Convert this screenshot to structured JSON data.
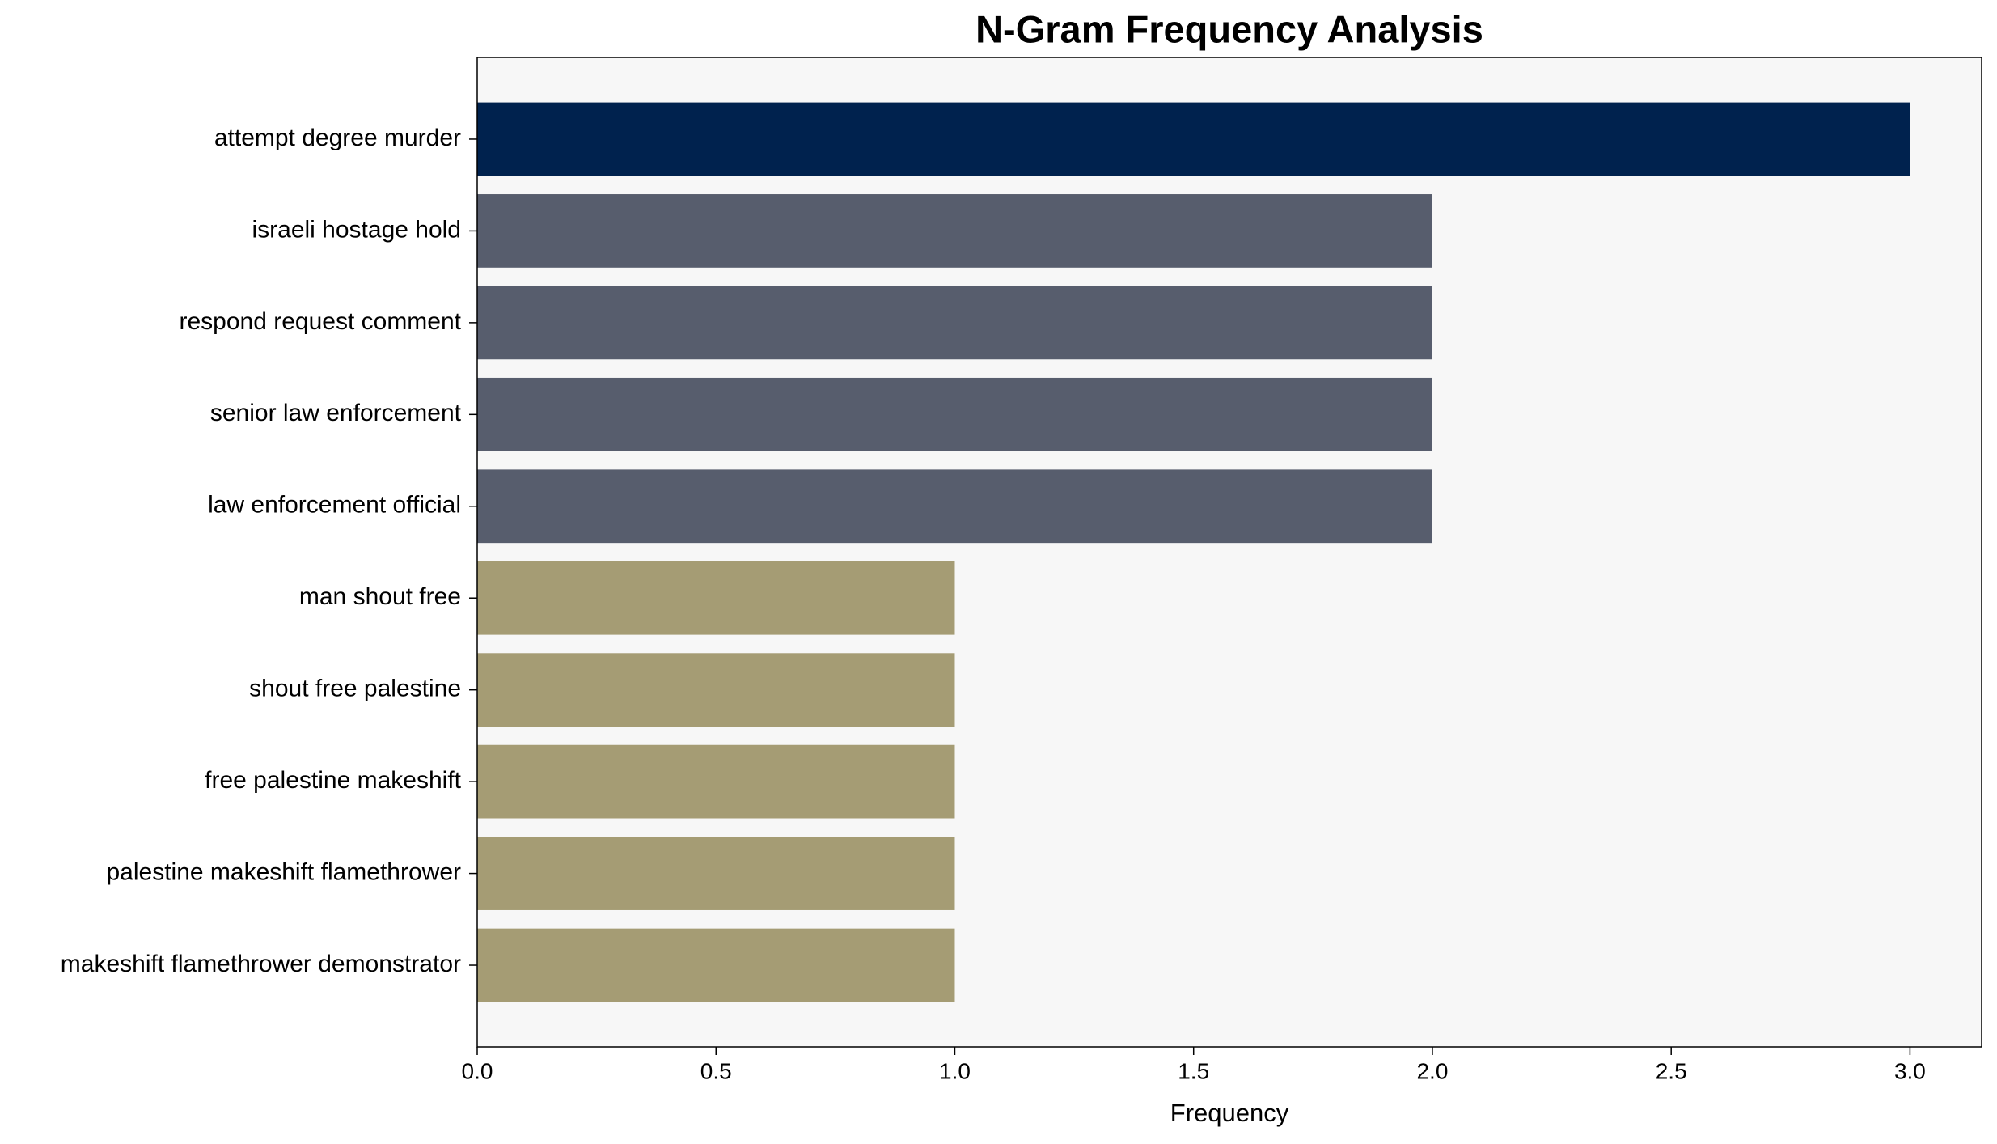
{
  "chart_data": {
    "type": "bar",
    "orientation": "horizontal",
    "title": "N-Gram Frequency Analysis",
    "x_label": "Frequency",
    "categories": [
      "attempt degree murder",
      "israeli hostage hold",
      "respond request comment",
      "senior law enforcement",
      "law enforcement official",
      "man shout free",
      "shout free palestine",
      "free palestine makeshift",
      "palestine makeshift flamethrower",
      "makeshift flamethrower demonstrator"
    ],
    "values": [
      3,
      2,
      2,
      2,
      2,
      1,
      1,
      1,
      1,
      1
    ],
    "colors": [
      "#00224e",
      "#575d6d",
      "#575d6d",
      "#575d6d",
      "#575d6d",
      "#a59c74",
      "#a59c74",
      "#a59c74",
      "#a59c74",
      "#a59c74"
    ],
    "xlim": [
      0,
      3.15
    ],
    "xticks": [
      {
        "value": 0,
        "label": "0.0"
      },
      0.5,
      {
        "value": 1,
        "label": "1.0"
      },
      1.5,
      {
        "value": 2,
        "label": "2.0"
      },
      2.5,
      {
        "value": 3,
        "label": "3.0"
      }
    ],
    "grid": false
  }
}
